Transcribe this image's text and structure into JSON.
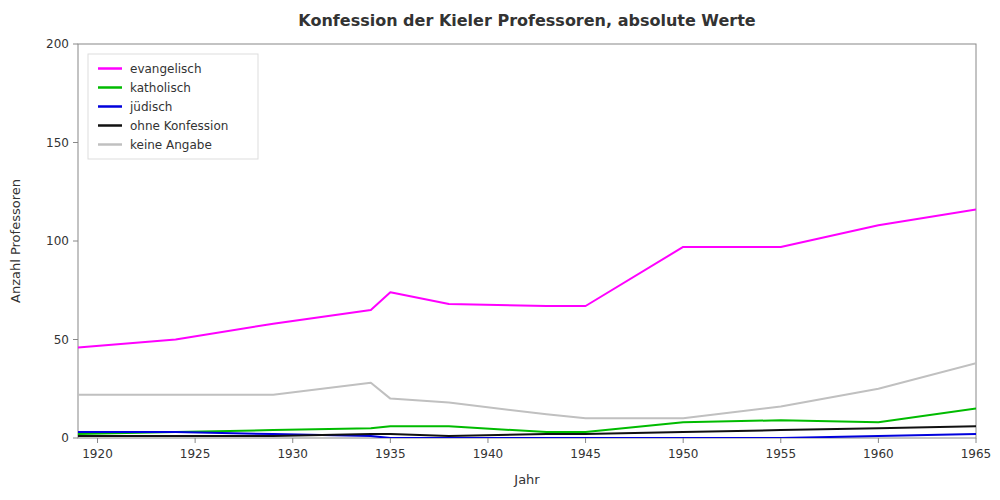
{
  "chart_data": {
    "type": "line",
    "title": "Konfession der Kieler Professoren, absolute Werte",
    "x_label": "Jahr",
    "y_label": "Anzahl Professoren",
    "x": [
      1919,
      1924,
      1929,
      1934,
      1935,
      1938,
      1943,
      1945,
      1950,
      1955,
      1960,
      1965
    ],
    "series": [
      {
        "name": "evangelisch",
        "color": "#ff00ff",
        "values": [
          46,
          50,
          58,
          65,
          74,
          68,
          67,
          67,
          97,
          97,
          108,
          116
        ]
      },
      {
        "name": "katholisch",
        "color": "#00bb00",
        "values": [
          2,
          3,
          4,
          5,
          6,
          6,
          3,
          3,
          8,
          9,
          8,
          15
        ]
      },
      {
        "name": "jüdisch",
        "color": "#0000dd",
        "values": [
          3,
          3,
          2,
          1,
          0,
          0,
          0,
          0,
          0,
          0,
          1,
          2
        ]
      },
      {
        "name": "ohne Konfession",
        "color": "#111111",
        "values": [
          1,
          1,
          1,
          2,
          2,
          1,
          2,
          2,
          3,
          4,
          5,
          6
        ]
      },
      {
        "name": "keine Angabe",
        "color": "#c0c0c0",
        "values": [
          22,
          22,
          22,
          28,
          20,
          18,
          12,
          10,
          10,
          16,
          25,
          38
        ]
      }
    ],
    "xlim": [
      1919,
      1965
    ],
    "xticks": [
      1920,
      1925,
      1930,
      1935,
      1940,
      1945,
      1950,
      1955,
      1960,
      1965
    ],
    "ylim": [
      0,
      200
    ],
    "yticks": [
      0,
      50,
      100,
      150,
      200
    ],
    "grid": false,
    "legend": "upper left"
  }
}
